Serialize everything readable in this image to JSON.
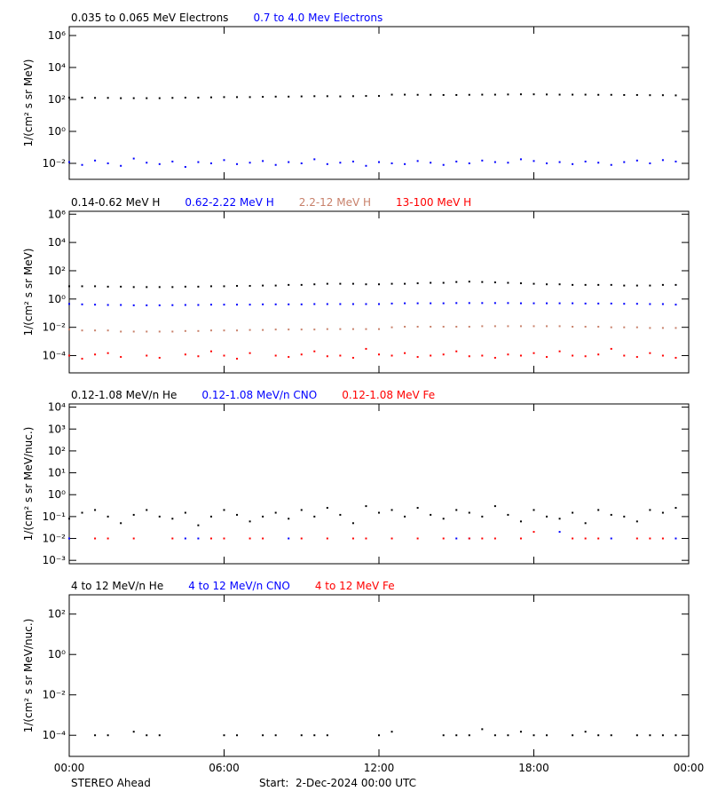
{
  "x_axis": {
    "x": [
      0,
      0.5,
      1,
      1.5,
      2,
      2.5,
      3,
      3.5,
      4,
      4.5,
      5,
      5.5,
      6,
      6.5,
      7,
      7.5,
      8,
      8.5,
      9,
      9.5,
      10,
      10.5,
      11,
      11.5,
      12,
      12.5,
      13,
      13.5,
      14,
      14.5,
      15,
      15.5,
      16,
      16.5,
      17,
      17.5,
      18,
      18.5,
      19,
      19.5,
      20,
      20.5,
      21,
      21.5,
      22,
      22.5,
      23,
      23.5
    ],
    "xlim": [
      0,
      24
    ],
    "xticks": [
      {
        "value": 0,
        "label": "00:00"
      },
      {
        "value": 6,
        "label": "06:00"
      },
      {
        "value": 12,
        "label": "12:00"
      },
      {
        "value": 18,
        "label": "18:00"
      },
      {
        "value": 24,
        "label": "00:00"
      }
    ]
  },
  "footer": {
    "left": "STEREO Ahead",
    "center": "Start:  2-Dec-2024 00:00 UTC"
  },
  "chart_data": [
    {
      "type": "scatter",
      "log_y": true,
      "ylabel": "1/(cm² s sr MeV)",
      "ylim": [
        0.001,
        3600000
      ],
      "yticks": [
        {
          "value": 0.01,
          "label": "10⁻²"
        },
        {
          "value": 1,
          "label": "10⁰"
        },
        {
          "value": 100,
          "label": "10²"
        },
        {
          "value": 10000,
          "label": "10⁴"
        },
        {
          "value": 1000000,
          "label": "10⁶"
        }
      ],
      "series": [
        {
          "name": "0.035 to 0.065 MeV Electrons",
          "color": "#000000",
          "values": [
            130,
            130,
            125,
            125,
            120,
            120,
            120,
            120,
            125,
            130,
            130,
            135,
            140,
            140,
            140,
            145,
            150,
            150,
            155,
            160,
            160,
            155,
            160,
            165,
            165,
            200,
            200,
            195,
            195,
            190,
            190,
            195,
            200,
            200,
            205,
            210,
            210,
            205,
            200,
            200,
            200,
            195,
            195,
            190,
            190,
            185,
            185,
            180
          ]
        },
        {
          "name": "0.7 to 4.0 Mev Electrons",
          "color": "#0000ff",
          "values": [
            0.012,
            0.008,
            0.015,
            0.01,
            0.007,
            0.02,
            0.011,
            0.009,
            0.013,
            0.006,
            0.012,
            0.01,
            0.016,
            0.009,
            0.011,
            0.014,
            0.008,
            0.012,
            0.01,
            0.018,
            0.009,
            0.011,
            0.013,
            0.007,
            0.012,
            0.01,
            0.009,
            0.014,
            0.011,
            0.008,
            0.013,
            0.01,
            0.015,
            0.012,
            0.011,
            0.018,
            0.014,
            0.01,
            0.012,
            0.009,
            0.013,
            0.011,
            0.008,
            0.012,
            0.015,
            0.01,
            0.016,
            0.013
          ]
        }
      ]
    },
    {
      "type": "scatter",
      "log_y": true,
      "ylabel": "1/(cm² s sr MeV)",
      "ylim": [
        6e-06,
        1600000
      ],
      "yticks": [
        {
          "value": 0.0001,
          "label": "10⁻⁴"
        },
        {
          "value": 0.01,
          "label": "10⁻²"
        },
        {
          "value": 1,
          "label": "10⁰"
        },
        {
          "value": 100,
          "label": "10²"
        },
        {
          "value": 10000,
          "label": "10⁴"
        },
        {
          "value": 1000000,
          "label": "10⁶"
        }
      ],
      "series": [
        {
          "name": "0.14-0.62 MeV H",
          "color": "#000000",
          "values": [
            8,
            8,
            8,
            7.5,
            7.5,
            7,
            7,
            7,
            7,
            7.5,
            7.5,
            8,
            8,
            8.5,
            8.5,
            9,
            9,
            10,
            10,
            11,
            12,
            12,
            12,
            11,
            11,
            12,
            12,
            13,
            14,
            14,
            16,
            17,
            16,
            15,
            14,
            13,
            12,
            11,
            11,
            10,
            10,
            10,
            10,
            9,
            9,
            9,
            10,
            10
          ]
        },
        {
          "name": "0.62-2.22 MeV H",
          "color": "#0000ff",
          "values": [
            0.45,
            0.42,
            0.4,
            0.38,
            0.38,
            0.36,
            0.36,
            0.36,
            0.37,
            0.38,
            0.38,
            0.4,
            0.4,
            0.4,
            0.4,
            0.42,
            0.42,
            0.42,
            0.42,
            0.44,
            0.44,
            0.44,
            0.44,
            0.44,
            0.44,
            0.48,
            0.5,
            0.5,
            0.5,
            0.5,
            0.52,
            0.52,
            0.52,
            0.52,
            0.52,
            0.5,
            0.5,
            0.5,
            0.5,
            0.5,
            0.48,
            0.48,
            0.48,
            0.46,
            0.46,
            0.44,
            0.44,
            0.4
          ]
        },
        {
          "name": "2.2-12 MeV H",
          "color": "#c8806a",
          "values": [
            0.007,
            0.006,
            0.006,
            0.006,
            0.005,
            0.005,
            0.005,
            0.005,
            0.005,
            0.0055,
            0.0055,
            0.006,
            0.006,
            0.006,
            0.0065,
            0.0065,
            0.007,
            0.007,
            0.007,
            0.007,
            0.0075,
            0.0075,
            0.0075,
            0.0075,
            0.0075,
            0.01,
            0.011,
            0.011,
            0.011,
            0.011,
            0.011,
            0.011,
            0.012,
            0.012,
            0.012,
            0.012,
            0.012,
            0.012,
            0.012,
            0.011,
            0.011,
            0.011,
            0.01,
            0.01,
            0.01,
            0.009,
            0.009,
            0.009
          ]
        },
        {
          "name": "13-100 MeV H",
          "color": "#ff0000",
          "values": [
            0.0001,
            6e-05,
            0.00012,
            0.00015,
            8e-05,
            null,
            0.0001,
            7e-05,
            null,
            0.00012,
            9e-05,
            0.0002,
            0.0001,
            6e-05,
            0.00015,
            null,
            0.0001,
            8e-05,
            0.00012,
            0.0002,
            9e-05,
            0.0001,
            7e-05,
            0.0003,
            0.00012,
            0.0001,
            0.00015,
            8e-05,
            0.0001,
            0.00012,
            0.0002,
            9e-05,
            0.0001,
            7e-05,
            0.00012,
            0.0001,
            0.00015,
            8e-05,
            0.0002,
            0.0001,
            9e-05,
            0.00012,
            0.0003,
            0.0001,
            8e-05,
            0.00015,
            0.0001,
            7e-05
          ]
        }
      ]
    },
    {
      "type": "scatter",
      "log_y": true,
      "ylabel": "1/(cm² s sr MeV/nuc.)",
      "ylim": [
        0.0007,
        14000
      ],
      "yticks": [
        {
          "value": 0.001,
          "label": "10⁻³"
        },
        {
          "value": 0.01,
          "label": "10⁻²"
        },
        {
          "value": 0.1,
          "label": "10⁻¹"
        },
        {
          "value": 1,
          "label": "10⁰"
        },
        {
          "value": 10,
          "label": "10¹"
        },
        {
          "value": 100,
          "label": "10²"
        },
        {
          "value": 1000,
          "label": "10³"
        },
        {
          "value": 10000,
          "label": "10⁴"
        }
      ],
      "series": [
        {
          "name": "0.12-1.08 MeV/n He",
          "color": "#000000",
          "values": [
            0.08,
            0.15,
            0.2,
            0.1,
            0.05,
            0.12,
            0.2,
            0.1,
            0.08,
            0.15,
            0.04,
            0.1,
            0.2,
            0.12,
            0.06,
            0.1,
            0.15,
            0.08,
            0.2,
            0.1,
            0.25,
            0.12,
            0.05,
            0.3,
            0.15,
            0.2,
            0.1,
            0.25,
            0.12,
            0.08,
            0.2,
            0.15,
            0.1,
            0.3,
            0.12,
            0.06,
            0.2,
            0.1,
            0.08,
            0.15,
            0.05,
            0.2,
            0.12,
            0.1,
            0.06,
            0.2,
            0.15,
            0.25
          ]
        },
        {
          "name": "0.12-1.08 MeV/n CNO",
          "color": "#0000ff",
          "values": [
            0.01,
            null,
            null,
            null,
            null,
            null,
            null,
            null,
            null,
            0.01,
            0.01,
            null,
            null,
            null,
            null,
            null,
            null,
            0.01,
            null,
            null,
            null,
            null,
            null,
            null,
            null,
            null,
            null,
            null,
            null,
            null,
            0.01,
            0.01,
            null,
            null,
            null,
            null,
            null,
            null,
            0.02,
            null,
            null,
            null,
            0.01,
            null,
            null,
            null,
            null,
            0.01
          ]
        },
        {
          "name": "0.12-1.08 MeV Fe",
          "color": "#ff0000",
          "values": [
            null,
            null,
            0.01,
            0.01,
            null,
            0.01,
            null,
            null,
            0.01,
            null,
            null,
            0.01,
            0.01,
            null,
            0.01,
            0.01,
            null,
            null,
            0.01,
            null,
            0.01,
            null,
            0.01,
            0.01,
            null,
            0.01,
            null,
            0.01,
            null,
            0.01,
            null,
            0.01,
            0.01,
            0.01,
            null,
            0.01,
            0.02,
            null,
            null,
            0.01,
            0.01,
            0.01,
            null,
            null,
            0.01,
            0.01,
            0.01,
            null
          ]
        }
      ]
    },
    {
      "type": "scatter",
      "log_y": true,
      "ylabel": "1/(cm² s sr MeV/nuc.)",
      "ylim": [
        9e-06,
        900
      ],
      "yticks": [
        {
          "value": 0.0001,
          "label": "10⁻⁴"
        },
        {
          "value": 0.01,
          "label": "10⁻²"
        },
        {
          "value": 1,
          "label": "10⁰"
        },
        {
          "value": 100,
          "label": "10²"
        }
      ],
      "series": [
        {
          "name": "4 to 12 MeV/n He",
          "color": "#000000",
          "values": [
            null,
            null,
            0.0001,
            0.0001,
            null,
            0.00015,
            0.0001,
            0.0001,
            null,
            null,
            null,
            null,
            0.0001,
            0.0001,
            null,
            0.0001,
            0.0001,
            null,
            0.0001,
            0.0001,
            0.0001,
            null,
            null,
            null,
            0.0001,
            0.00015,
            null,
            null,
            null,
            0.0001,
            0.0001,
            0.0001,
            0.0002,
            0.0001,
            0.0001,
            0.00015,
            0.0001,
            0.0001,
            null,
            0.0001,
            0.00015,
            0.0001,
            0.0001,
            null,
            0.0001,
            0.0001,
            0.0001,
            0.0001
          ]
        },
        {
          "name": "4 to 12 MeV/n CNO",
          "color": "#0000ff",
          "values": [
            null,
            null,
            null,
            null,
            null,
            null,
            null,
            null,
            null,
            null,
            null,
            null,
            null,
            null,
            null,
            null,
            null,
            null,
            null,
            null,
            null,
            null,
            null,
            null,
            null,
            null,
            null,
            null,
            null,
            null,
            null,
            null,
            null,
            null,
            null,
            null,
            null,
            null,
            null,
            null,
            null,
            null,
            null,
            null,
            null,
            null,
            null,
            null
          ]
        },
        {
          "name": "4 to 12 MeV Fe",
          "color": "#ff0000",
          "values": [
            null,
            null,
            null,
            null,
            null,
            null,
            null,
            null,
            null,
            null,
            null,
            null,
            null,
            null,
            null,
            null,
            null,
            null,
            null,
            null,
            null,
            null,
            null,
            null,
            null,
            null,
            null,
            null,
            null,
            null,
            null,
            null,
            null,
            null,
            null,
            null,
            null,
            null,
            null,
            null,
            null,
            null,
            null,
            null,
            null,
            null,
            null,
            null
          ]
        }
      ]
    }
  ]
}
